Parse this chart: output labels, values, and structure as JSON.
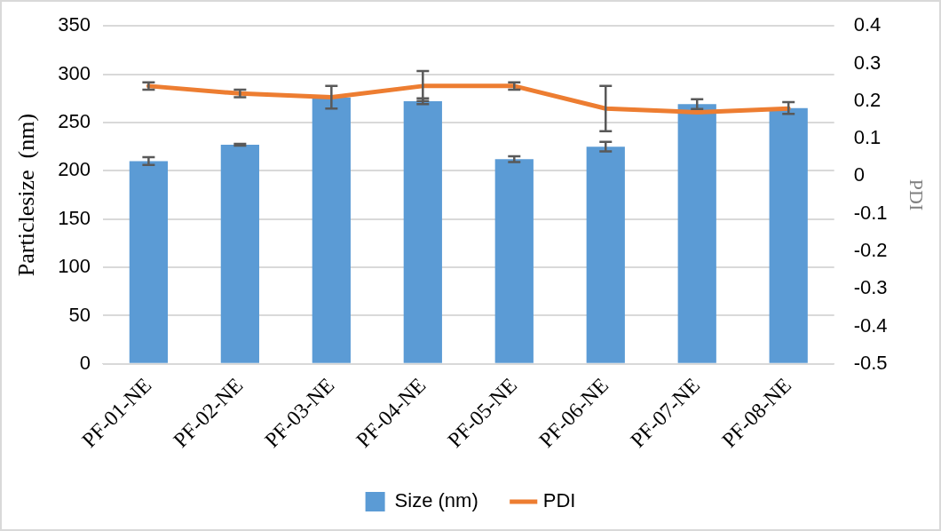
{
  "chart_data": {
    "type": "bar",
    "ylabel": "Particlesize  (nm)",
    "y2label": "PDI",
    "categories": [
      "PF-01-NE",
      "PF-02-NE",
      "PF-03-NE",
      "PF-04-NE",
      "PF-05-NE",
      "PF-06-NE",
      "PF-07-NE",
      "PF-08-NE"
    ],
    "series": [
      {
        "name": "Size (nm)",
        "color": "#5b9bd5",
        "values": [
          210,
          227,
          276,
          272,
          212,
          225,
          269,
          265
        ],
        "errors": [
          4,
          1,
          null,
          3,
          3,
          5,
          5,
          6
        ]
      },
      {
        "name": "PDI",
        "type": "line",
        "axis": "y2",
        "color": "#ed7d31",
        "values": [
          0.24,
          0.22,
          0.21,
          0.24,
          0.24,
          0.18,
          0.17,
          0.18
        ],
        "errors": [
          0.01,
          0.01,
          0.03,
          0.04,
          0.01,
          0.06,
          null,
          null
        ]
      }
    ],
    "ylim": [
      0,
      350
    ],
    "yticks": [
      0,
      50,
      100,
      150,
      200,
      250,
      300,
      350
    ],
    "y2lim": [
      -0.5,
      0.4
    ],
    "y2ticks": [
      -0.5,
      -0.4,
      -0.3,
      -0.2,
      -0.1,
      0,
      0.1,
      0.2,
      0.3,
      0.4
    ],
    "grid": "y",
    "legend": "bottom"
  }
}
